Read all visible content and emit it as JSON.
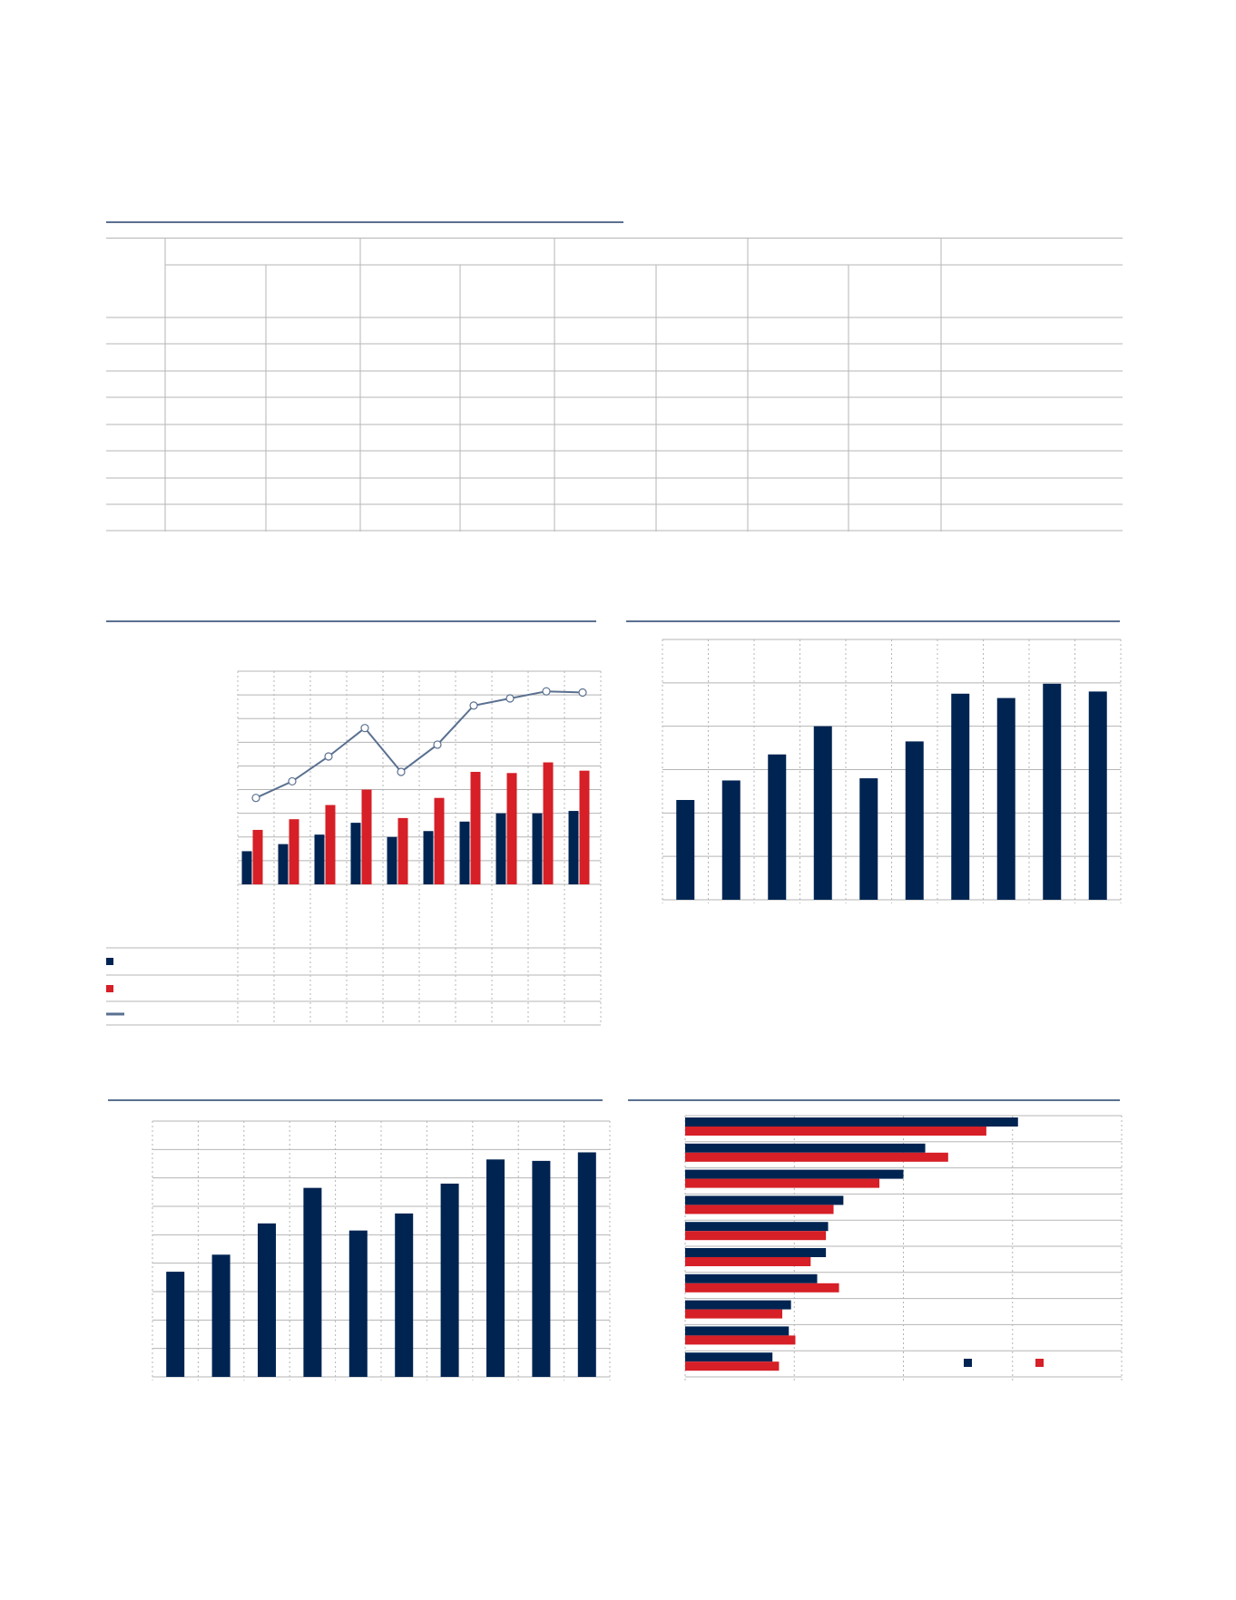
{
  "colors": {
    "navy": "#002452",
    "red": "#d61f26",
    "line": "#5a7090",
    "grid": "#b5b5b5"
  },
  "table": {
    "column_groups": 5,
    "sub_columns": 9,
    "body_rows": 8
  },
  "chart_data": [
    {
      "type": "bar",
      "panel": "top-left",
      "categories": [
        "",
        "",
        "",
        "",
        "",
        "",
        "",
        "",
        "",
        ""
      ],
      "series": [
        {
          "color": "#002452",
          "values": [
            1.4,
            1.7,
            2.1,
            2.6,
            2.0,
            2.25,
            2.65,
            3.0,
            3.0,
            3.1
          ]
        },
        {
          "color": "#d61f26",
          "values": [
            2.3,
            2.75,
            3.35,
            4.0,
            2.8,
            3.65,
            4.75,
            4.7,
            5.15,
            4.8
          ]
        }
      ],
      "line_series": {
        "color": "#5a7090",
        "values": [
          3.65,
          4.35,
          5.4,
          6.6,
          4.75,
          5.9,
          7.55,
          7.85,
          8.15,
          8.1
        ]
      },
      "ylim": [
        0,
        9
      ],
      "grid": true,
      "legend": "bottom-left-table"
    },
    {
      "type": "bar",
      "panel": "top-right",
      "categories": [
        "",
        "",
        "",
        "",
        "",
        "",
        "",
        "",
        "",
        ""
      ],
      "values": [
        2.3,
        2.75,
        3.35,
        4.0,
        2.8,
        3.65,
        4.75,
        4.65,
        4.98,
        4.8
      ],
      "ylim": [
        0,
        6
      ],
      "grid": true
    },
    {
      "type": "bar",
      "panel": "bottom-left",
      "categories": [
        "",
        "",
        "",
        "",
        "",
        "",
        "",
        "",
        "",
        ""
      ],
      "values": [
        3.7,
        4.3,
        5.4,
        6.65,
        5.15,
        5.75,
        6.8,
        7.65,
        7.6,
        7.9
      ],
      "ylim": [
        0,
        9
      ],
      "grid": true
    },
    {
      "type": "bar",
      "orientation": "horizontal",
      "panel": "bottom-right",
      "categories": [
        "",
        "",
        "",
        "",
        "",
        "",
        "",
        "",
        "",
        ""
      ],
      "series": [
        {
          "color": "#002452",
          "values": [
            3.05,
            2.2,
            2.0,
            1.45,
            1.31,
            1.29,
            1.21,
            0.97,
            0.95,
            0.8
          ]
        },
        {
          "color": "#d61f26",
          "values": [
            2.76,
            2.41,
            1.78,
            1.36,
            1.29,
            1.15,
            1.41,
            0.89,
            1.01,
            0.86
          ]
        }
      ],
      "xlim": [
        0,
        4
      ],
      "grid": true,
      "legend": "bottom-right"
    }
  ]
}
